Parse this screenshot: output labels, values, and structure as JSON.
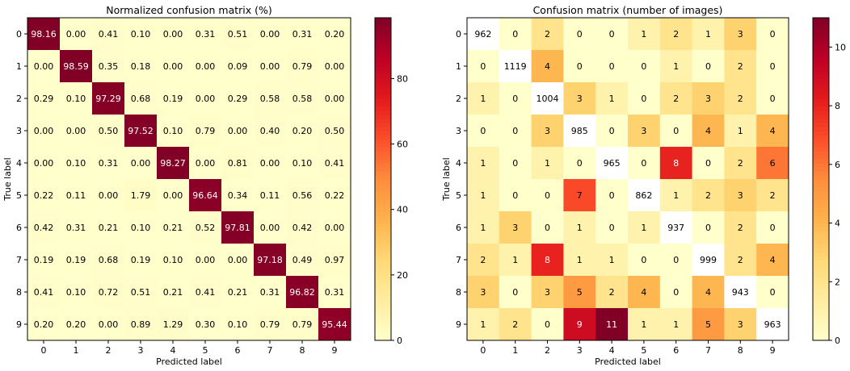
{
  "chart_data": [
    {
      "type": "heatmap",
      "title": "Normalized confusion matrix (%)",
      "xlabel": "Predicted label",
      "ylabel": "True label",
      "x_categories": [
        "0",
        "1",
        "2",
        "3",
        "4",
        "5",
        "6",
        "7",
        "8",
        "9"
      ],
      "y_categories": [
        "0",
        "1",
        "2",
        "3",
        "4",
        "5",
        "6",
        "7",
        "8",
        "9"
      ],
      "values": [
        [
          98.16,
          0.0,
          0.41,
          0.1,
          0.0,
          0.31,
          0.51,
          0.0,
          0.31,
          0.2
        ],
        [
          0.0,
          98.59,
          0.35,
          0.18,
          0.0,
          0.0,
          0.09,
          0.0,
          0.79,
          0.0
        ],
        [
          0.29,
          0.1,
          97.29,
          0.68,
          0.19,
          0.0,
          0.29,
          0.58,
          0.58,
          0.0
        ],
        [
          0.0,
          0.0,
          0.5,
          97.52,
          0.1,
          0.79,
          0.0,
          0.4,
          0.2,
          0.5
        ],
        [
          0.0,
          0.1,
          0.31,
          0.0,
          98.27,
          0.0,
          0.81,
          0.0,
          0.1,
          0.41
        ],
        [
          0.22,
          0.11,
          0.0,
          1.79,
          0.0,
          96.64,
          0.34,
          0.11,
          0.56,
          0.22
        ],
        [
          0.42,
          0.31,
          0.21,
          0.1,
          0.21,
          0.52,
          97.81,
          0.0,
          0.42,
          0.0
        ],
        [
          0.19,
          0.19,
          0.68,
          0.19,
          0.1,
          0.0,
          0.0,
          97.18,
          0.49,
          0.97
        ],
        [
          0.41,
          0.1,
          0.72,
          0.51,
          0.21,
          0.41,
          0.21,
          0.31,
          96.82,
          0.31
        ],
        [
          0.2,
          0.2,
          0.0,
          0.89,
          1.29,
          0.3,
          0.1,
          0.79,
          0.79,
          95.44
        ]
      ],
      "value_format": "fixed2",
      "colormap": "YlOrRd",
      "color_range": [
        0,
        98.59
      ],
      "colorbar_ticks": [
        0,
        20,
        40,
        60,
        80
      ]
    },
    {
      "type": "heatmap",
      "title": "Confusion matrix (number of images)",
      "xlabel": "Predicted label",
      "ylabel": "True label",
      "x_categories": [
        "0",
        "1",
        "2",
        "3",
        "4",
        "5",
        "6",
        "7",
        "8",
        "9"
      ],
      "y_categories": [
        "0",
        "1",
        "2",
        "3",
        "4",
        "5",
        "6",
        "7",
        "8",
        "9"
      ],
      "values": [
        [
          962,
          0,
          2,
          0,
          0,
          1,
          2,
          1,
          3,
          0
        ],
        [
          0,
          1119,
          4,
          0,
          0,
          0,
          1,
          0,
          2,
          0
        ],
        [
          1,
          0,
          1004,
          3,
          1,
          0,
          2,
          3,
          2,
          0
        ],
        [
          0,
          0,
          3,
          985,
          0,
          3,
          0,
          4,
          1,
          4
        ],
        [
          1,
          0,
          1,
          0,
          965,
          0,
          8,
          0,
          2,
          6
        ],
        [
          1,
          0,
          0,
          7,
          0,
          862,
          1,
          2,
          3,
          2
        ],
        [
          1,
          3,
          0,
          1,
          0,
          1,
          937,
          0,
          2,
          0
        ],
        [
          2,
          1,
          8,
          1,
          1,
          0,
          0,
          999,
          2,
          4
        ],
        [
          3,
          0,
          3,
          5,
          2,
          4,
          0,
          4,
          943,
          0
        ],
        [
          1,
          2,
          0,
          9,
          11,
          1,
          1,
          5,
          3,
          963
        ]
      ],
      "value_format": "integer",
      "colormap": "YlOrRd",
      "color_range": [
        0,
        11
      ],
      "diagonal_color": "#ffffff",
      "colorbar_ticks": [
        0,
        2,
        4,
        6,
        8,
        10
      ]
    }
  ]
}
